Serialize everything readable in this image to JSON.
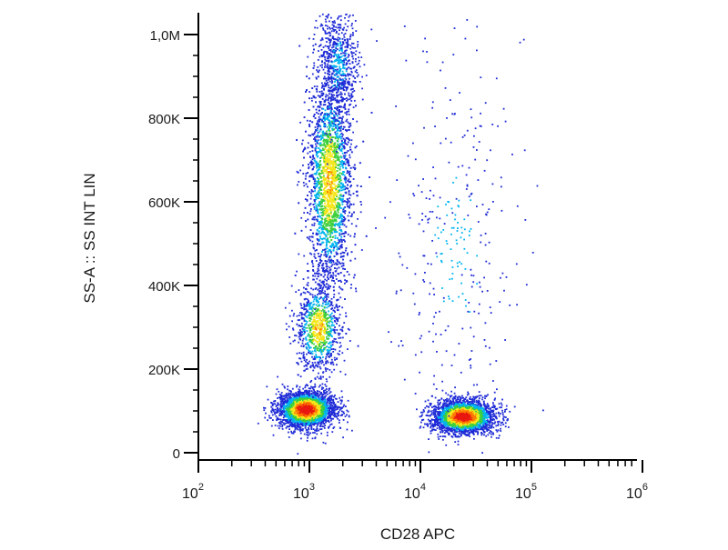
{
  "chart_data": {
    "type": "scatter",
    "style": "flow-cytometry density dot plot (pseudocolor: blue = low density, green/yellow = medium, orange/red = high)",
    "xlabel": "CD28 APC",
    "ylabel": "SS-A :: SS INT LIN",
    "x_scale": "log",
    "y_scale": "linear",
    "xlim": [
      50,
      1200000
    ],
    "ylim": [
      -10000,
      1050000
    ],
    "x_ticks": [
      {
        "value": 100,
        "base": "10",
        "exp": "2"
      },
      {
        "value": 1000,
        "base": "10",
        "exp": "3"
      },
      {
        "value": 10000,
        "base": "10",
        "exp": "4"
      },
      {
        "value": 100000,
        "base": "10",
        "exp": "5"
      },
      {
        "value": 1000000,
        "base": "10",
        "exp": "6"
      }
    ],
    "y_ticks": [
      {
        "value": 0,
        "label": "0"
      },
      {
        "value": 200000,
        "label": "200K"
      },
      {
        "value": 400000,
        "label": "400K"
      },
      {
        "value": 600000,
        "label": "600K"
      },
      {
        "value": 800000,
        "label": "800K"
      },
      {
        "value": 1000000,
        "label": "1,0M"
      }
    ],
    "grid": false,
    "legend": "none",
    "colors": {
      "low_density": "#1f2bd6",
      "mid_low_density": "#00b4f0",
      "mid_density": "#3ccf3c",
      "mid_high_density": "#f5e61a",
      "high_density": "#ff7a00",
      "peak_density": "#e81810",
      "axis": "#000000"
    },
    "populations": [
      {
        "id": "cd28-negative-lymphocytes",
        "x_center": 920,
        "y_center": 105000,
        "x_log_sd": 0.13,
        "y_sd": 22000,
        "count": 2600,
        "peak": "high"
      },
      {
        "id": "cd28-positive-lymphocytes",
        "x_center": 24000,
        "y_center": 88000,
        "x_log_sd": 0.14,
        "y_sd": 20000,
        "count": 2600,
        "peak": "high"
      },
      {
        "id": "granulocytes",
        "x_center": 1500,
        "y_center": 650000,
        "x_log_sd": 0.1,
        "y_sd": 130000,
        "count": 3200,
        "peak": "medium"
      },
      {
        "id": "monocytes",
        "x_center": 1200,
        "y_center": 300000,
        "x_log_sd": 0.1,
        "y_sd": 55000,
        "count": 900,
        "peak": "medium"
      },
      {
        "id": "upper-granulocyte-tail",
        "x_center": 1800,
        "y_center": 930000,
        "x_log_sd": 0.09,
        "y_sd": 70000,
        "count": 700,
        "peak": "low"
      },
      {
        "id": "sparse-cd28-positive-events",
        "x_center": 20000,
        "y_center": 500000,
        "x_log_sd": 0.25,
        "y_sd": 230000,
        "count": 320,
        "peak": "low"
      }
    ]
  }
}
